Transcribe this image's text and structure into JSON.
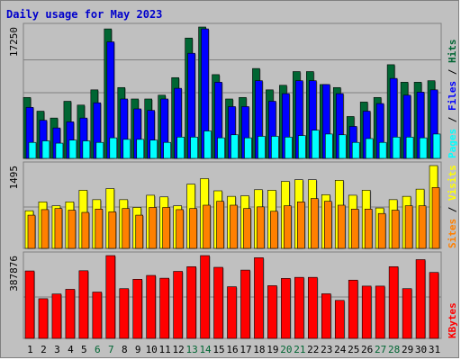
{
  "title": "Daily usage for May 2023",
  "colors": {
    "background": "#c0c0c0",
    "grid": "#808080",
    "pages": "#00ffff",
    "files": "#0000ff",
    "hits": "#006633",
    "visits": "#ffff00",
    "sites": "#ff8000",
    "kbytes": "#ff0000",
    "weekend_day": "#006633",
    "weekday": "#000000",
    "title": "#0000cc"
  },
  "chart_data": [
    {
      "type": "bar",
      "panel": "top",
      "series": [
        {
          "name": "Pages",
          "values": [
            2100,
            2300,
            2000,
            2400,
            2300,
            2100,
            2700,
            2500,
            2500,
            2400,
            2100,
            2800,
            2800,
            3600,
            2700,
            3100,
            2700,
            2900,
            2900,
            2800,
            3000,
            3700,
            3200,
            3100,
            2100,
            2600,
            2100,
            2800,
            2800,
            2700,
            3200
          ]
        },
        {
          "name": "Files",
          "values": [
            6700,
            5000,
            4000,
            4800,
            5300,
            7300,
            15300,
            7800,
            6500,
            6300,
            7800,
            9200,
            13800,
            17000,
            10000,
            6800,
            6800,
            10200,
            7500,
            8500,
            10200,
            10200,
            9700,
            8500,
            4200,
            6200,
            7200,
            10500,
            8300,
            8700,
            9000
          ]
        },
        {
          "name": "Hits",
          "values": [
            8000,
            6200,
            5300,
            7500,
            7000,
            9000,
            17000,
            9300,
            7800,
            7800,
            8300,
            10600,
            15800,
            17250,
            11000,
            7800,
            8000,
            11800,
            9000,
            9600,
            11400,
            11400,
            9700,
            9300,
            5500,
            7400,
            8000,
            12300,
            10000,
            10000,
            10200
          ]
        }
      ],
      "ymax": "17250",
      "axis_labels": [
        "Pages",
        "Files",
        "Hits"
      ],
      "separators": [
        " / ",
        " / "
      ]
    },
    {
      "type": "bar",
      "panel": "middle",
      "series": [
        {
          "name": "Visits",
          "values": [
            680,
            840,
            770,
            840,
            1050,
            880,
            1080,
            880,
            740,
            960,
            930,
            770,
            1160,
            1260,
            1040,
            940,
            950,
            1060,
            1050,
            1210,
            1240,
            1240,
            970,
            1230,
            960,
            1050,
            730,
            880,
            940,
            1070,
            1495
          ]
        },
        {
          "name": "Sites",
          "values": [
            600,
            700,
            720,
            690,
            650,
            710,
            660,
            720,
            600,
            740,
            740,
            700,
            720,
            780,
            850,
            780,
            720,
            750,
            670,
            770,
            840,
            900,
            850,
            780,
            710,
            710,
            630,
            690,
            770,
            770,
            1100
          ]
        }
      ],
      "ymax": "1495",
      "axis_labels": [
        "Sites",
        "Visits"
      ],
      "separators": [
        " / "
      ]
    },
    {
      "type": "bar",
      "panel": "bottom",
      "series": [
        {
          "name": "KBytes",
          "values": [
            316000,
            186000,
            208000,
            230000,
            317000,
            217000,
            387876,
            233000,
            277000,
            295000,
            282000,
            314000,
            336000,
            387876,
            333000,
            242000,
            320000,
            378000,
            247000,
            281000,
            286000,
            286000,
            209000,
            178000,
            273000,
            245000,
            245000,
            336000,
            233000,
            369000,
            309000
          ]
        }
      ],
      "ymax": "387876",
      "axis_labels": [
        "KBytes"
      ],
      "separators": []
    }
  ],
  "x_labels": [
    "1",
    "2",
    "3",
    "4",
    "5",
    "6",
    "7",
    "8",
    "9",
    "10",
    "11",
    "12",
    "13",
    "14",
    "15",
    "16",
    "17",
    "18",
    "19",
    "20",
    "21",
    "22",
    "23",
    "24",
    "25",
    "26",
    "27",
    "28",
    "29",
    "30",
    "31"
  ],
  "weekend_days": [
    6,
    7,
    13,
    14,
    20,
    21,
    27,
    28
  ]
}
